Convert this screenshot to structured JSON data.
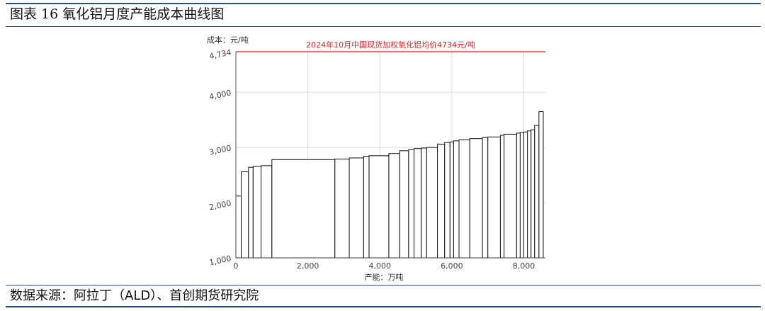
{
  "figure": {
    "title": "图表 16 氧化铝月度产能成本曲线图",
    "source": "数据来源：阿拉丁（ALD）、首创期货研究院"
  },
  "chart_data": {
    "type": "bar",
    "subtype": "cost-curve",
    "ylabel": "成本：元/吨",
    "xlabel": "产能：万吨",
    "xlim": [
      0,
      8600
    ],
    "ylim": [
      1000,
      4734
    ],
    "y_ticks": [
      "1,000",
      "2,000",
      "3,000",
      "4,000",
      "4,734"
    ],
    "x_ticks": [
      "0",
      "2,000",
      "4,000",
      "6,000",
      "8,000"
    ],
    "x_tick_values": [
      0,
      2000,
      4000,
      6000,
      8000
    ],
    "y_tick_values": [
      1000,
      2000,
      3000,
      4000,
      4734
    ],
    "grid": true,
    "reference_line": {
      "value": 4734,
      "label": "2024年10月中国现货加权氧化铝均价4734元/吨",
      "color": "#d62728"
    },
    "bars": [
      {
        "x0": 0,
        "x1": 150,
        "y": 2120
      },
      {
        "x0": 150,
        "x1": 350,
        "y": 2560
      },
      {
        "x0": 350,
        "x1": 480,
        "y": 2640
      },
      {
        "x0": 480,
        "x1": 700,
        "y": 2660
      },
      {
        "x0": 700,
        "x1": 1000,
        "y": 2670
      },
      {
        "x0": 1000,
        "x1": 2750,
        "y": 2780
      },
      {
        "x0": 2750,
        "x1": 3150,
        "y": 2790
      },
      {
        "x0": 3150,
        "x1": 3550,
        "y": 2810
      },
      {
        "x0": 3550,
        "x1": 3700,
        "y": 2840
      },
      {
        "x0": 3700,
        "x1": 4250,
        "y": 2850
      },
      {
        "x0": 4250,
        "x1": 4550,
        "y": 2890
      },
      {
        "x0": 4550,
        "x1": 4800,
        "y": 2940
      },
      {
        "x0": 4800,
        "x1": 4950,
        "y": 2960
      },
      {
        "x0": 4950,
        "x1": 5150,
        "y": 2980
      },
      {
        "x0": 5150,
        "x1": 5300,
        "y": 2990
      },
      {
        "x0": 5300,
        "x1": 5600,
        "y": 3000
      },
      {
        "x0": 5600,
        "x1": 5800,
        "y": 3060
      },
      {
        "x0": 5800,
        "x1": 5950,
        "y": 3090
      },
      {
        "x0": 5950,
        "x1": 6050,
        "y": 3100
      },
      {
        "x0": 6050,
        "x1": 6200,
        "y": 3120
      },
      {
        "x0": 6200,
        "x1": 6500,
        "y": 3140
      },
      {
        "x0": 6500,
        "x1": 6850,
        "y": 3160
      },
      {
        "x0": 6850,
        "x1": 7000,
        "y": 3180
      },
      {
        "x0": 7000,
        "x1": 7350,
        "y": 3190
      },
      {
        "x0": 7350,
        "x1": 7450,
        "y": 3220
      },
      {
        "x0": 7450,
        "x1": 7800,
        "y": 3240
      },
      {
        "x0": 7800,
        "x1": 7900,
        "y": 3260
      },
      {
        "x0": 7900,
        "x1": 8000,
        "y": 3270
      },
      {
        "x0": 8000,
        "x1": 8100,
        "y": 3280
      },
      {
        "x0": 8100,
        "x1": 8200,
        "y": 3300
      },
      {
        "x0": 8200,
        "x1": 8300,
        "y": 3320
      },
      {
        "x0": 8300,
        "x1": 8420,
        "y": 3400
      },
      {
        "x0": 8420,
        "x1": 8540,
        "y": 3650
      }
    ],
    "colors": {
      "bar_stroke": "#222222",
      "bar_fill": "#ffffff",
      "grid": "#d9d9d9"
    }
  }
}
